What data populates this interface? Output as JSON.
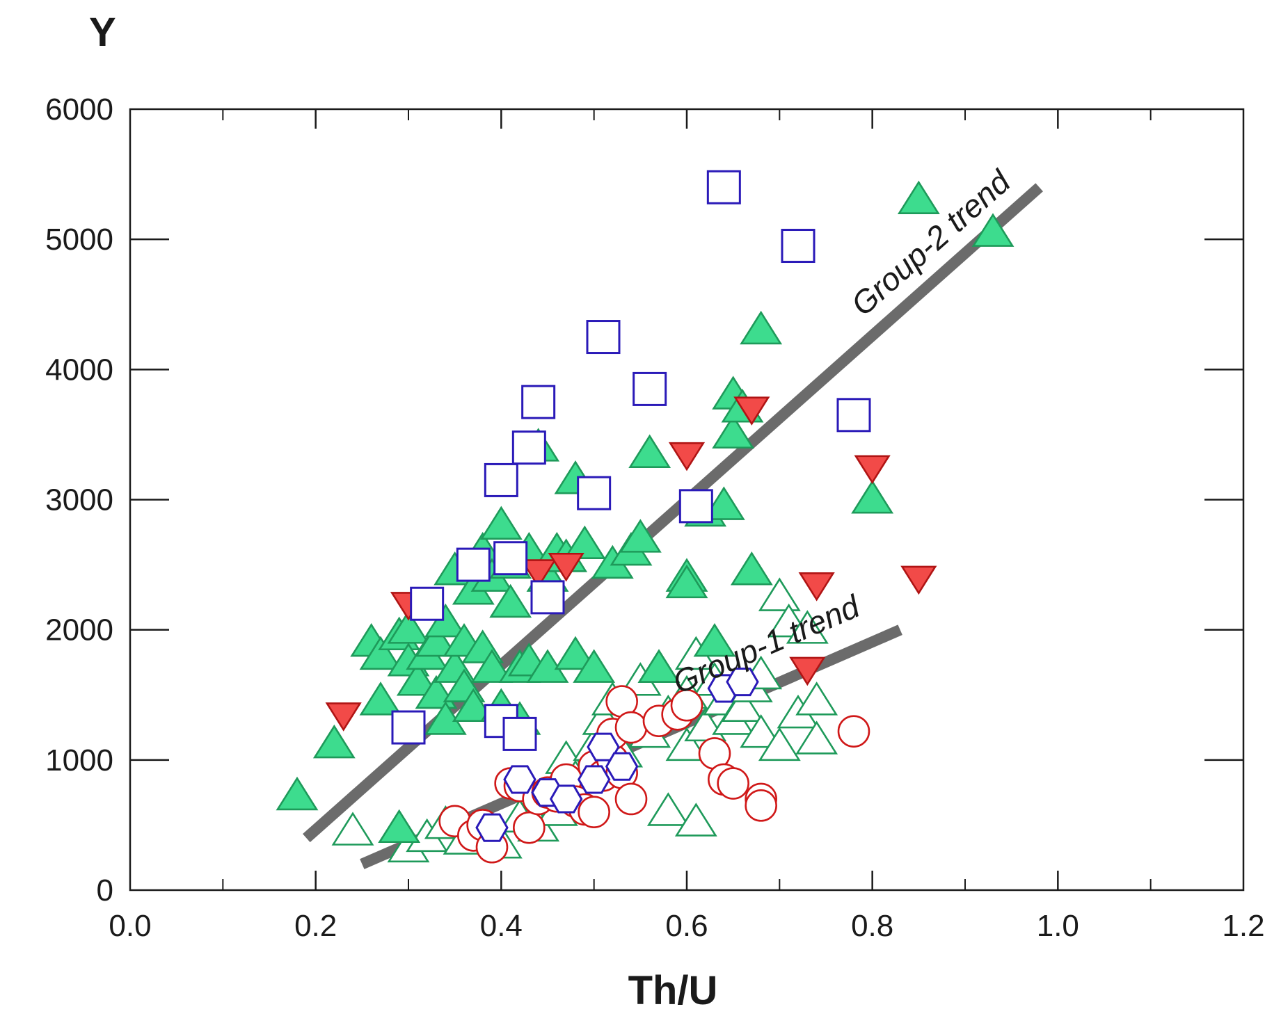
{
  "chart_data": {
    "type": "scatter",
    "xlabel": "Th/U",
    "ylabel": "Y",
    "xlim": [
      0.0,
      1.2
    ],
    "ylim": [
      0,
      6000
    ],
    "xticks": [
      {
        "value": 0.0,
        "label": "0.0"
      },
      {
        "value": 0.2,
        "label": "0.2"
      },
      {
        "value": 0.4,
        "label": "0.4"
      },
      {
        "value": 0.6,
        "label": "0.6"
      },
      {
        "value": 0.8,
        "label": "0.8"
      },
      {
        "value": 1.0,
        "label": "1.0"
      },
      {
        "value": 1.2,
        "label": "1.2"
      }
    ],
    "xminor": [
      0.1,
      0.3,
      0.5,
      0.7,
      0.9,
      1.1
    ],
    "yticks": [
      {
        "value": 0,
        "label": "0"
      },
      {
        "value": 1000,
        "label": "1000"
      },
      {
        "value": 2000,
        "label": "2000"
      },
      {
        "value": 3000,
        "label": "3000"
      },
      {
        "value": 4000,
        "label": "4000"
      },
      {
        "value": 5000,
        "label": "5000"
      },
      {
        "value": 6000,
        "label": "6000"
      }
    ],
    "grid": false,
    "legend": "none",
    "trend_lines": [
      {
        "label": "Group-1 trend",
        "color": "#6b6b6b",
        "points": [
          [
            0.25,
            200
          ],
          [
            0.83,
            2000
          ]
        ]
      },
      {
        "label": "Group-2 trend",
        "color": "#6b6b6b",
        "points": [
          [
            0.19,
            400
          ],
          [
            0.98,
            5400
          ]
        ]
      }
    ],
    "series": [
      {
        "marker": "triangle-up",
        "fill": "#3ddc8e",
        "stroke": "#1e9a5a",
        "points": [
          [
            0.18,
            720
          ],
          [
            0.22,
            1120
          ],
          [
            0.29,
            470
          ],
          [
            0.27,
            1450
          ],
          [
            0.26,
            1900
          ],
          [
            0.27,
            1800
          ],
          [
            0.29,
            1950
          ],
          [
            0.3,
            2000
          ],
          [
            0.3,
            1750
          ],
          [
            0.31,
            1600
          ],
          [
            0.32,
            1800
          ],
          [
            0.33,
            1500
          ],
          [
            0.33,
            1900
          ],
          [
            0.34,
            1300
          ],
          [
            0.34,
            2050
          ],
          [
            0.35,
            2450
          ],
          [
            0.35,
            1700
          ],
          [
            0.36,
            1550
          ],
          [
            0.36,
            1900
          ],
          [
            0.37,
            2300
          ],
          [
            0.37,
            1400
          ],
          [
            0.38,
            2600
          ],
          [
            0.38,
            1850
          ],
          [
            0.39,
            1700
          ],
          [
            0.39,
            2400
          ],
          [
            0.4,
            2800
          ],
          [
            0.4,
            1400
          ],
          [
            0.41,
            2200
          ],
          [
            0.41,
            2500
          ],
          [
            0.42,
            1700
          ],
          [
            0.42,
            1300
          ],
          [
            0.43,
            2600
          ],
          [
            0.43,
            1750
          ],
          [
            0.44,
            3400
          ],
          [
            0.45,
            2400
          ],
          [
            0.45,
            1700
          ],
          [
            0.46,
            2600
          ],
          [
            0.47,
            2550
          ],
          [
            0.48,
            1800
          ],
          [
            0.48,
            3150
          ],
          [
            0.49,
            2650
          ],
          [
            0.5,
            1700
          ],
          [
            0.52,
            2500
          ],
          [
            0.54,
            2600
          ],
          [
            0.55,
            2700
          ],
          [
            0.56,
            3350
          ],
          [
            0.57,
            1700
          ],
          [
            0.6,
            2400
          ],
          [
            0.6,
            2350
          ],
          [
            0.62,
            2900
          ],
          [
            0.63,
            1900
          ],
          [
            0.64,
            2950
          ],
          [
            0.65,
            3800
          ],
          [
            0.65,
            3500
          ],
          [
            0.66,
            3700
          ],
          [
            0.67,
            2450
          ],
          [
            0.68,
            4300
          ],
          [
            0.8,
            3000
          ],
          [
            0.85,
            5300
          ],
          [
            0.93,
            5050
          ]
        ]
      },
      {
        "marker": "triangle-up-open",
        "fill": "#ffffff",
        "stroke": "#1e9a5a",
        "points": [
          [
            0.24,
            450
          ],
          [
            0.3,
            320
          ],
          [
            0.32,
            400
          ],
          [
            0.34,
            500
          ],
          [
            0.36,
            380
          ],
          [
            0.38,
            450
          ],
          [
            0.4,
            350
          ],
          [
            0.42,
            550
          ],
          [
            0.44,
            480
          ],
          [
            0.46,
            600
          ],
          [
            0.47,
            1000
          ],
          [
            0.48,
            850
          ],
          [
            0.5,
            1100
          ],
          [
            0.51,
            1300
          ],
          [
            0.52,
            1450
          ],
          [
            0.53,
            1050
          ],
          [
            0.55,
            1600
          ],
          [
            0.56,
            1200
          ],
          [
            0.57,
            1700
          ],
          [
            0.58,
            1350
          ],
          [
            0.58,
            600
          ],
          [
            0.6,
            1500
          ],
          [
            0.6,
            1100
          ],
          [
            0.61,
            1800
          ],
          [
            0.61,
            520
          ],
          [
            0.62,
            1250
          ],
          [
            0.63,
            1600
          ],
          [
            0.64,
            1450
          ],
          [
            0.65,
            1300
          ],
          [
            0.66,
            1400
          ],
          [
            0.67,
            1550
          ],
          [
            0.68,
            1650
          ],
          [
            0.68,
            1200
          ],
          [
            0.7,
            1100
          ],
          [
            0.7,
            2250
          ],
          [
            0.71,
            2050
          ],
          [
            0.72,
            1350
          ],
          [
            0.73,
            2000
          ],
          [
            0.74,
            1450
          ],
          [
            0.74,
            1150
          ]
        ]
      },
      {
        "marker": "triangle-down",
        "fill": "#f24a48",
        "stroke": "#b01414",
        "points": [
          [
            0.23,
            1350
          ],
          [
            0.3,
            2200
          ],
          [
            0.44,
            2450
          ],
          [
            0.47,
            2500
          ],
          [
            0.6,
            3350
          ],
          [
            0.67,
            3700
          ],
          [
            0.73,
            1700
          ],
          [
            0.74,
            2350
          ],
          [
            0.8,
            3250
          ],
          [
            0.85,
            2400
          ]
        ]
      },
      {
        "marker": "square-open",
        "fill": "#ffffff",
        "stroke": "#2a1ab8",
        "points": [
          [
            0.3,
            1250
          ],
          [
            0.32,
            2200
          ],
          [
            0.37,
            2500
          ],
          [
            0.4,
            3150
          ],
          [
            0.4,
            1300
          ],
          [
            0.41,
            2550
          ],
          [
            0.42,
            1200
          ],
          [
            0.43,
            3400
          ],
          [
            0.44,
            3750
          ],
          [
            0.45,
            2250
          ],
          [
            0.5,
            3050
          ],
          [
            0.51,
            4250
          ],
          [
            0.56,
            3850
          ],
          [
            0.61,
            2950
          ],
          [
            0.64,
            5400
          ],
          [
            0.72,
            4950
          ],
          [
            0.78,
            3650
          ]
        ]
      },
      {
        "marker": "circle-open",
        "fill": "#ffffff",
        "stroke": "#d01818",
        "points": [
          [
            0.35,
            530
          ],
          [
            0.37,
            420
          ],
          [
            0.38,
            500
          ],
          [
            0.39,
            330
          ],
          [
            0.41,
            820
          ],
          [
            0.42,
            800
          ],
          [
            0.43,
            480
          ],
          [
            0.44,
            700
          ],
          [
            0.45,
            750
          ],
          [
            0.46,
            720
          ],
          [
            0.47,
            850
          ],
          [
            0.48,
            680
          ],
          [
            0.49,
            620
          ],
          [
            0.5,
            950
          ],
          [
            0.5,
            600
          ],
          [
            0.51,
            880
          ],
          [
            0.52,
            1000
          ],
          [
            0.52,
            1200
          ],
          [
            0.53,
            1450
          ],
          [
            0.53,
            900
          ],
          [
            0.54,
            1250
          ],
          [
            0.54,
            700
          ],
          [
            0.57,
            1300
          ],
          [
            0.59,
            1350
          ],
          [
            0.6,
            1420
          ],
          [
            0.63,
            1050
          ],
          [
            0.64,
            850
          ],
          [
            0.65,
            820
          ],
          [
            0.68,
            700
          ],
          [
            0.68,
            650
          ],
          [
            0.78,
            1220
          ]
        ]
      },
      {
        "marker": "hexagon-open",
        "fill": "#ffffff",
        "stroke": "#2a1ab8",
        "points": [
          [
            0.39,
            480
          ],
          [
            0.42,
            850
          ],
          [
            0.45,
            750
          ],
          [
            0.47,
            700
          ],
          [
            0.5,
            850
          ],
          [
            0.51,
            1100
          ],
          [
            0.53,
            950
          ],
          [
            0.64,
            1550
          ],
          [
            0.66,
            1600
          ]
        ]
      }
    ]
  }
}
